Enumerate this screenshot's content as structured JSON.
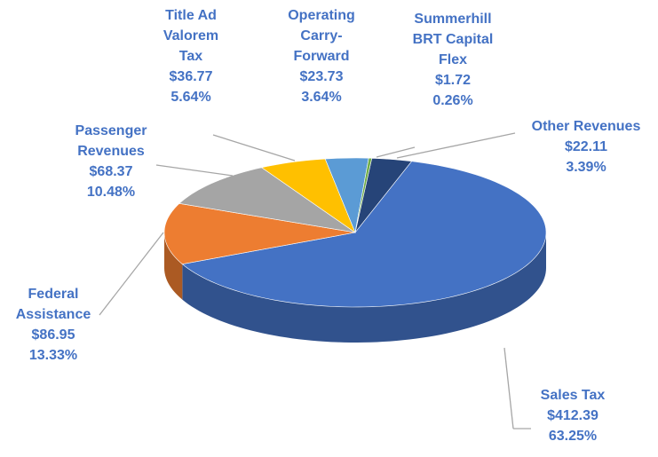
{
  "chart_data": {
    "type": "pie",
    "categories": [
      "Other Revenues",
      "Sales Tax",
      "Federal Assistance",
      "Passenger Revenues",
      "Title Ad Valorem Tax",
      "Operating Carry-Forward",
      "Summerhill BRT Capital Flex"
    ],
    "values": [
      22.11,
      412.39,
      86.95,
      68.37,
      36.77,
      23.73,
      1.72
    ],
    "value_labels": [
      "$22.11",
      "$412.39",
      "$86.95",
      "$68.37",
      "$36.77",
      "$23.73",
      "$1.72"
    ],
    "percent_labels": [
      "3.39%",
      "63.25%",
      "13.33%",
      "10.48%",
      "5.64%",
      "3.64%",
      "0.26%"
    ],
    "colors": [
      "#264478",
      "#4472c4",
      "#ed7d31",
      "#a5a5a5",
      "#ffc000",
      "#5b9bd5",
      "#70ad47"
    ]
  }
}
